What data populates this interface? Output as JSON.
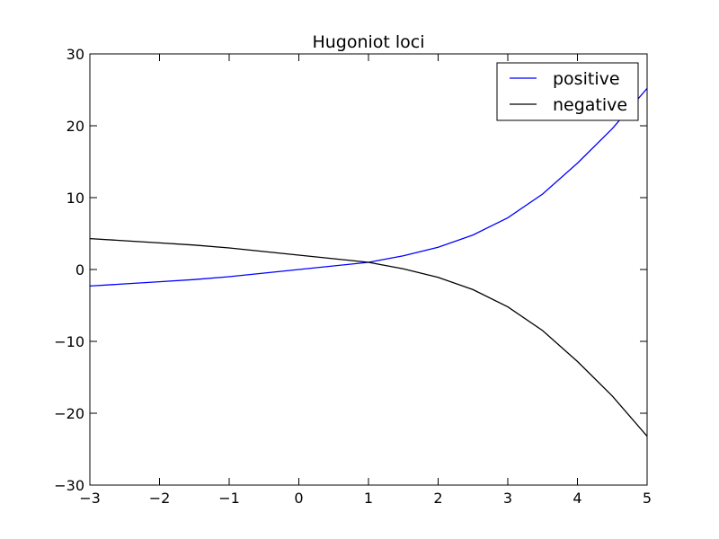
{
  "chart_data": {
    "type": "line",
    "title": "Hugoniot loci",
    "xlabel": "",
    "ylabel": "",
    "xlim": [
      -3,
      5
    ],
    "ylim": [
      -30,
      30
    ],
    "x_ticks": [
      -3,
      -2,
      -1,
      0,
      1,
      2,
      3,
      4,
      5
    ],
    "x_tick_labels": [
      "−3",
      "−2",
      "−1",
      "0",
      "1",
      "2",
      "3",
      "4",
      "5"
    ],
    "y_ticks": [
      -30,
      -20,
      -10,
      0,
      10,
      20,
      30
    ],
    "y_tick_labels": [
      "−30",
      "−20",
      "−10",
      "0",
      "10",
      "20",
      "30"
    ],
    "grid": false,
    "legend_position": "top-right",
    "series": [
      {
        "name": "positive",
        "color": "#0000ff",
        "x": [
          -3,
          -2.5,
          -2,
          -1.5,
          -1,
          -0.5,
          0,
          0.5,
          1,
          1.5,
          2,
          2.5,
          3,
          3.5,
          4,
          4.5,
          5
        ],
        "y": [
          -2.3,
          -2.0,
          -1.7,
          -1.4,
          -1.0,
          -0.5,
          0.0,
          0.5,
          1.0,
          1.9,
          3.1,
          4.8,
          7.2,
          10.5,
          14.8,
          19.6,
          25.2
        ]
      },
      {
        "name": "negative",
        "color": "#000000",
        "x": [
          -3,
          -2.5,
          -2,
          -1.5,
          -1,
          -0.5,
          0,
          0.5,
          1,
          1.5,
          2,
          2.5,
          3,
          3.5,
          4,
          4.5,
          5
        ],
        "y": [
          4.3,
          4.0,
          3.7,
          3.4,
          3.0,
          2.5,
          2.0,
          1.5,
          1.0,
          0.1,
          -1.1,
          -2.8,
          -5.2,
          -8.5,
          -12.8,
          -17.6,
          -23.2
        ]
      }
    ]
  }
}
